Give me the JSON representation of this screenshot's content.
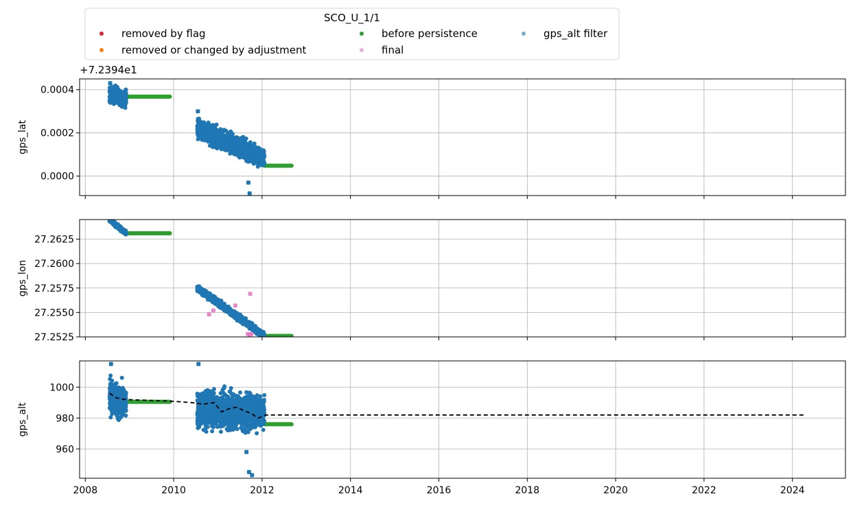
{
  "chart_data": {
    "type": "scatter",
    "legend": {
      "title": "SCO_U_1/1",
      "placement": "top",
      "entries": [
        {
          "label": "removed by flag",
          "color": "#d62728"
        },
        {
          "label": "removed or changed by adjustment",
          "color": "#ff7f0e"
        },
        {
          "label": "before persistence",
          "color": "#2ca02c"
        },
        {
          "label": "final",
          "color": "#e377c2"
        },
        {
          "label": "gps_alt filter",
          "color": "#1f77b4"
        }
      ]
    },
    "xaxis": {
      "type": "date",
      "xlim": [
        "2007-11-15",
        "2025-03-15"
      ],
      "ticks": [
        "2008",
        "2010",
        "2012",
        "2014",
        "2016",
        "2018",
        "2020",
        "2022",
        "2024"
      ]
    },
    "grid": true,
    "panels": [
      {
        "ylabel": "gps_lat",
        "offset_label": "+7.2394e1",
        "ylim": [
          -9e-05,
          0.00045
        ],
        "yticks": [
          0.0,
          0.0002,
          0.0004
        ],
        "yticklabels": [
          "0.0000",
          "0.0002",
          "0.0004"
        ],
        "clouds": [
          {
            "series": "gps_alt filter",
            "start": "2008-07-20",
            "end": "2008-12-05",
            "mid_start": 0.00038,
            "mid_end": 0.00036,
            "spread": 3.5e-05
          },
          {
            "series": "gps_alt filter",
            "start": "2010-07-15",
            "end": "2012-01-20",
            "mid_start": 0.00022,
            "mid_end": 8e-05,
            "spread": 4e-05
          }
        ],
        "lines": [
          {
            "series": "before persistence",
            "start": "2008-12-05",
            "end": "2009-12-01",
            "value": 0.000368
          },
          {
            "series": "before persistence",
            "start": "2012-01-20",
            "end": "2012-09-01",
            "value": 4.8e-05
          }
        ],
        "points": [
          {
            "series": "gps_alt filter",
            "x": "2008-07-25",
            "y": 0.00043
          },
          {
            "series": "gps_alt filter",
            "x": "2010-07-20",
            "y": 0.0003
          },
          {
            "series": "gps_alt filter",
            "x": "2011-09-10",
            "y": -3e-05
          },
          {
            "series": "gps_alt filter",
            "x": "2011-09-20",
            "y": -8e-05
          }
        ]
      },
      {
        "ylabel": "gps_lon",
        "ylim": [
          27.2525,
          27.2645
        ],
        "yticks": [
          27.2525,
          27.255,
          27.2575,
          27.26,
          27.2625
        ],
        "yticklabels": [
          "27.2525",
          "27.2550",
          "27.2575",
          "27.2600",
          "27.2625"
        ],
        "clouds": [
          {
            "series": "gps_alt filter",
            "start": "2008-07-20",
            "end": "2008-12-05",
            "mid_start": 27.2645,
            "mid_end": 27.2631,
            "spread": 0.0002
          },
          {
            "series": "gps_alt filter",
            "start": "2010-07-15",
            "end": "2012-01-20",
            "mid_start": 27.2575,
            "mid_end": 27.2526,
            "spread": 0.0003
          }
        ],
        "lines": [
          {
            "series": "before persistence",
            "start": "2008-12-05",
            "end": "2009-12-01",
            "value": 27.2631
          },
          {
            "series": "before persistence",
            "start": "2012-01-20",
            "end": "2012-09-01",
            "value": 27.2526
          }
        ],
        "points": [
          {
            "series": "final",
            "x": "2010-10-20",
            "y": 27.2548
          },
          {
            "series": "final",
            "x": "2010-11-25",
            "y": 27.2552
          },
          {
            "series": "final",
            "x": "2011-05-25",
            "y": 27.2557
          },
          {
            "series": "final",
            "x": "2011-09-25",
            "y": 27.2569
          },
          {
            "series": "final",
            "x": "2011-09-05",
            "y": 27.2528
          },
          {
            "series": "final",
            "x": "2011-09-20",
            "y": 27.2527
          },
          {
            "series": "final",
            "x": "2011-10-05",
            "y": 27.2528
          }
        ]
      },
      {
        "ylabel": "gps_alt",
        "ylim": [
          941,
          1017
        ],
        "yticks": [
          960,
          980,
          1000
        ],
        "yticklabels": [
          "960",
          "980",
          "1000"
        ],
        "clouds": [
          {
            "series": "gps_alt filter",
            "start": "2008-07-20",
            "end": "2008-12-05",
            "mid_start": 993,
            "mid_end": 990,
            "spread": 10
          },
          {
            "series": "gps_alt filter",
            "start": "2010-07-15",
            "end": "2012-01-20",
            "mid_start": 986,
            "mid_end": 983,
            "spread": 11
          }
        ],
        "lines": [
          {
            "series": "before persistence",
            "start": "2008-12-05",
            "end": "2009-12-01",
            "value": 990.5
          },
          {
            "series": "before persistence",
            "start": "2012-01-20",
            "end": "2012-09-01",
            "value": 976
          }
        ],
        "points": [
          {
            "series": "gps_alt filter",
            "x": "2008-08-01",
            "y": 1015
          },
          {
            "series": "gps_alt filter",
            "x": "2010-07-25",
            "y": 1015
          },
          {
            "series": "gps_alt filter",
            "x": "2011-09-15",
            "y": 945
          },
          {
            "series": "gps_alt filter",
            "x": "2011-10-10",
            "y": 943
          },
          {
            "series": "gps_alt filter",
            "x": "2011-08-25",
            "y": 958
          }
        ],
        "filter_line": [
          [
            "2008-07-20",
            996
          ],
          [
            "2008-09-15",
            993
          ],
          [
            "2008-12-01",
            992
          ],
          [
            "2009-06-01",
            991.5
          ],
          [
            "2009-12-01",
            991
          ],
          [
            "2010-06-01",
            990
          ],
          [
            "2010-09-01",
            989
          ],
          [
            "2010-12-01",
            990
          ],
          [
            "2011-02-01",
            984
          ],
          [
            "2011-04-01",
            986
          ],
          [
            "2011-06-01",
            987
          ],
          [
            "2011-08-01",
            985
          ],
          [
            "2011-10-01",
            983
          ],
          [
            "2011-12-01",
            980
          ],
          [
            "2012-02-01",
            982
          ],
          [
            "2024-04-20",
            982
          ]
        ]
      }
    ]
  }
}
